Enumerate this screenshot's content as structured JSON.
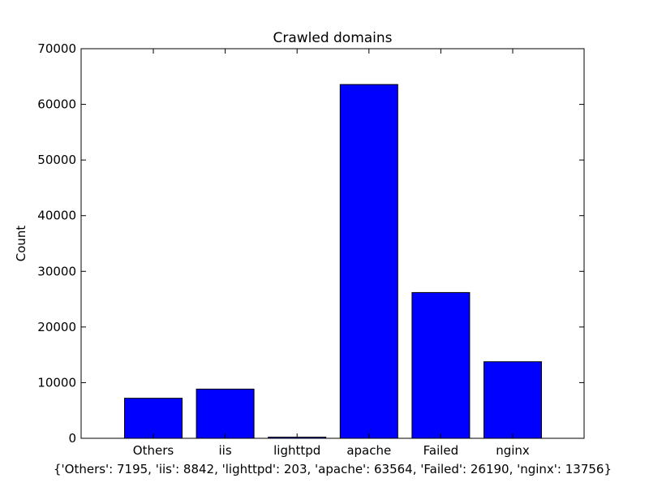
{
  "chart_data": {
    "type": "bar",
    "title": "Crawled domains",
    "xlabel": "",
    "ylabel": "Count",
    "categories": [
      "Others",
      "iis",
      "lighttpd",
      "apache",
      "Failed",
      "nginx"
    ],
    "values": [
      7195,
      8842,
      203,
      63564,
      26190,
      13756
    ],
    "ylim": [
      0,
      70000
    ],
    "yticks": [
      0,
      10000,
      20000,
      30000,
      40000,
      50000,
      60000,
      70000
    ],
    "bar_color": "#0000ff",
    "grid": false,
    "footer": "{'Others': 7195, 'iis': 8842, 'lighttpd': 203, 'apache': 63564, 'Failed': 26190, 'nginx': 13756}"
  }
}
